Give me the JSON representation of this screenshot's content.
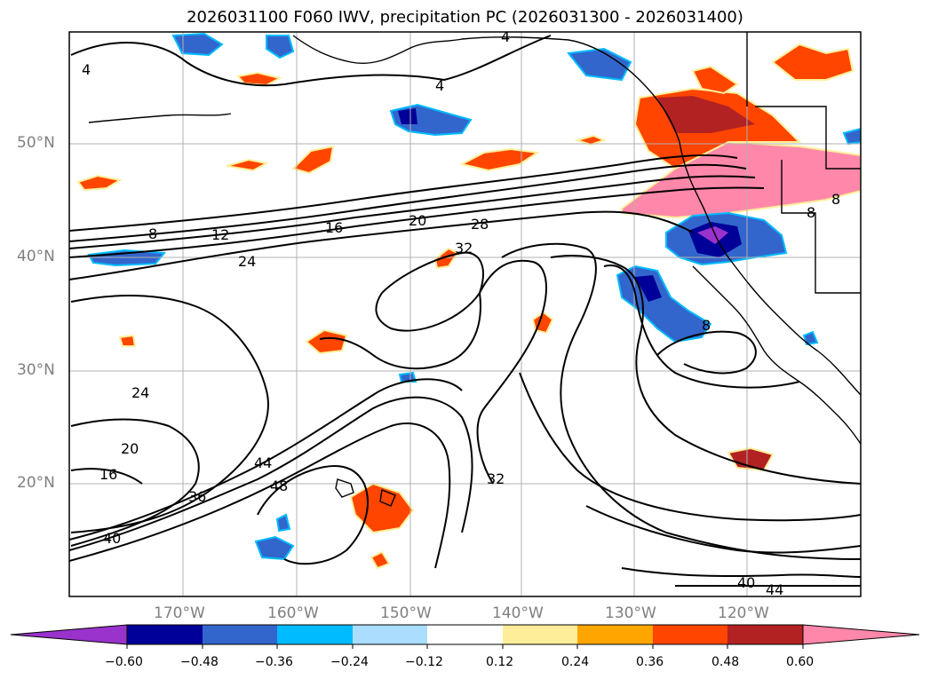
{
  "title": "2026031100 F060 IWV, precipitation PC (2026031300 - 2026031400)",
  "latitude_labels": [
    "50°N",
    "40°N",
    "30°N",
    "20°N"
  ],
  "longitude_labels": [
    "170°W",
    "160°W",
    "150°W",
    "140°W",
    "130°W",
    "120°W"
  ],
  "contour_labels": [
    "4",
    "4",
    "4",
    "8",
    "12",
    "16",
    "20",
    "24",
    "28",
    "32",
    "24",
    "20",
    "16",
    "36",
    "40",
    "44",
    "48",
    "32",
    "8",
    "8",
    "8",
    "40",
    "44"
  ],
  "colorbar": {
    "tick_labels": [
      "−0.60",
      "−0.48",
      "−0.36",
      "−0.24",
      "−0.12",
      "0.12",
      "0.24",
      "0.36",
      "0.48",
      "0.60"
    ],
    "colors": [
      "#9933cc",
      "#000099",
      "#3366cc",
      "#00bbff",
      "#aaddff",
      "#ffffff",
      "#ffee99",
      "#ffa500",
      "#ff4500",
      "#b22222",
      "#ff88aa"
    ]
  }
}
